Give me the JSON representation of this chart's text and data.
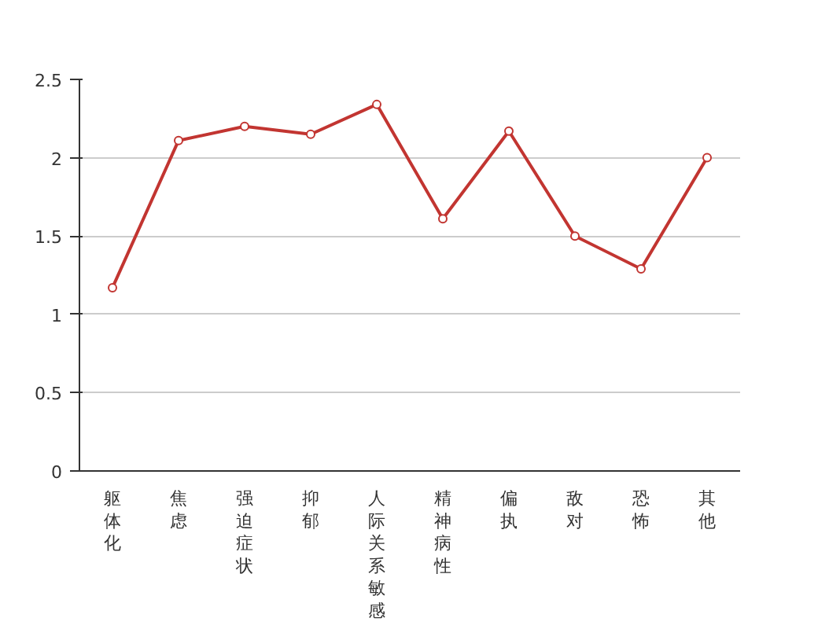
{
  "chart_data": {
    "type": "line",
    "categories": [
      "躯体化",
      "焦虑",
      "强迫症状",
      "抑郁",
      "人际关系敏感",
      "精神病性",
      "偏执",
      "敌对",
      "恐怖",
      "其他"
    ],
    "series": [
      {
        "color": "#c23531",
        "values": [
          1.17,
          2.11,
          2.2,
          2.15,
          2.34,
          1.61,
          2.17,
          1.5,
          1.29,
          2.0
        ]
      }
    ],
    "ylim": [
      0,
      2.5
    ],
    "yticks": [
      0,
      0.5,
      1,
      1.5,
      2,
      2.5
    ],
    "grid": "y",
    "marker": "circle",
    "line_style": "solid"
  }
}
